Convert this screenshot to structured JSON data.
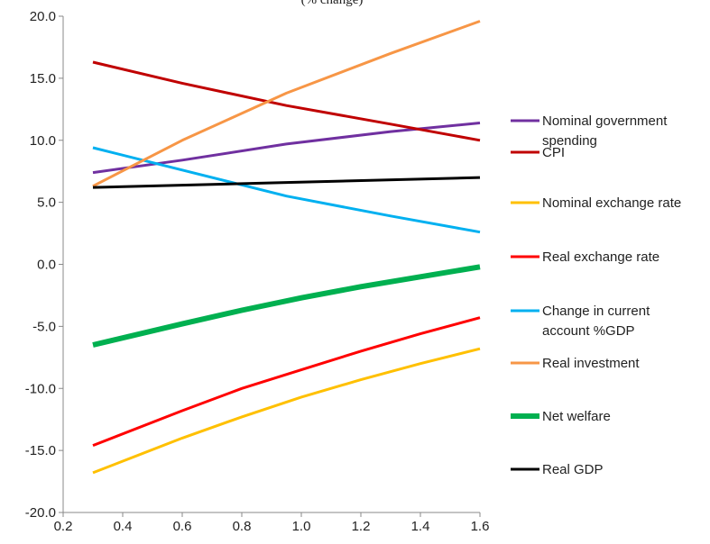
{
  "chart_data": {
    "type": "line",
    "title": "(% change)",
    "xlabel": "",
    "ylabel": "",
    "xlim": [
      0.2,
      1.6
    ],
    "ylim": [
      -20,
      20
    ],
    "xticks": [
      "0.2",
      "0.4",
      "0.6",
      "0.8",
      "1.0",
      "1.2",
      "1.4",
      "1.6"
    ],
    "yticks": [
      "20.0",
      "15.0",
      "10.0",
      "5.0",
      "0.0",
      "-5.0",
      "-10.0",
      "-15.0",
      "-20.0"
    ],
    "grid": false,
    "legend_position": "right",
    "series": [
      {
        "name": "Nominal government spending",
        "legend_lines": [
          "Nominal government",
          "spending"
        ],
        "color": "#7030A0",
        "width": 3,
        "points": [
          [
            0.3,
            7.4
          ],
          [
            0.6,
            8.4
          ],
          [
            0.95,
            9.7
          ],
          [
            1.3,
            10.7
          ],
          [
            1.6,
            11.4
          ]
        ]
      },
      {
        "name": "CPI",
        "legend_lines": [
          "CPI"
        ],
        "color": "#C00000",
        "width": 3,
        "points": [
          [
            0.3,
            16.3
          ],
          [
            0.6,
            14.6
          ],
          [
            0.95,
            12.8
          ],
          [
            1.3,
            11.3
          ],
          [
            1.6,
            10.0
          ]
        ]
      },
      {
        "name": "Nominal exchange rate",
        "legend_lines": [
          "Nominal exchange rate"
        ],
        "color": "#FFC000",
        "width": 3,
        "points": [
          [
            0.3,
            -16.8
          ],
          [
            0.6,
            -14.0
          ],
          [
            0.8,
            -12.3
          ],
          [
            1.0,
            -10.7
          ],
          [
            1.2,
            -9.3
          ],
          [
            1.4,
            -8.0
          ],
          [
            1.6,
            -6.8
          ]
        ]
      },
      {
        "name": "Real exchange rate",
        "legend_lines": [
          "Real exchange rate"
        ],
        "color": "#FF0000",
        "width": 3,
        "points": [
          [
            0.3,
            -14.6
          ],
          [
            0.6,
            -11.8
          ],
          [
            0.8,
            -10.0
          ],
          [
            1.0,
            -8.5
          ],
          [
            1.2,
            -7.0
          ],
          [
            1.4,
            -5.6
          ],
          [
            1.6,
            -4.3
          ]
        ]
      },
      {
        "name": "Change in current account %GDP",
        "legend_lines": [
          "Change in current",
          "account %GDP"
        ],
        "color": "#00B0F0",
        "width": 3,
        "points": [
          [
            0.3,
            9.4
          ],
          [
            0.6,
            7.6
          ],
          [
            0.95,
            5.5
          ],
          [
            1.3,
            3.9
          ],
          [
            1.6,
            2.6
          ]
        ]
      },
      {
        "name": "Real investment",
        "legend_lines": [
          "Real investment"
        ],
        "color": "#F79646",
        "width": 3,
        "points": [
          [
            0.3,
            6.3
          ],
          [
            0.6,
            10.0
          ],
          [
            0.95,
            13.8
          ],
          [
            1.3,
            17.0
          ],
          [
            1.6,
            19.6
          ]
        ]
      },
      {
        "name": "Net welfare",
        "legend_lines": [
          "Net welfare"
        ],
        "color": "#00B050",
        "width": 6,
        "points": [
          [
            0.3,
            -6.5
          ],
          [
            0.6,
            -4.8
          ],
          [
            0.8,
            -3.7
          ],
          [
            1.0,
            -2.7
          ],
          [
            1.2,
            -1.8
          ],
          [
            1.4,
            -1.0
          ],
          [
            1.6,
            -0.2
          ]
        ]
      },
      {
        "name": "Real GDP",
        "legend_lines": [
          "Real GDP"
        ],
        "color": "#000000",
        "width": 3,
        "points": [
          [
            0.3,
            6.2
          ],
          [
            0.95,
            6.6
          ],
          [
            1.6,
            7.0
          ]
        ]
      }
    ]
  }
}
